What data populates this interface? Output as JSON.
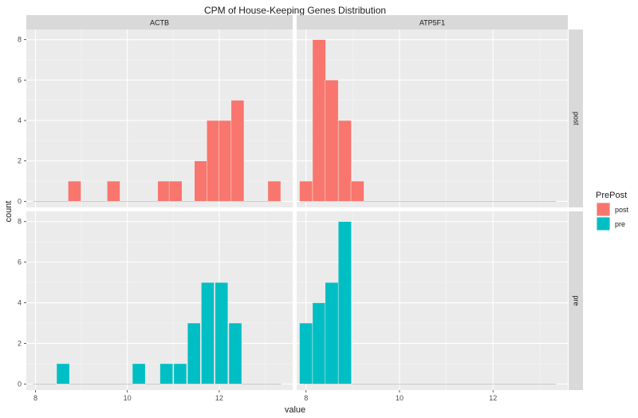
{
  "chart_data": {
    "type": "bar",
    "chart_subtype": "faceted-histogram",
    "title": "CPM of House-Keeping Genes Distribution",
    "xlabel": "value",
    "ylabel": "count",
    "xlim": [
      7.8,
      13.6
    ],
    "ylim": [
      -0.3,
      8.5
    ],
    "x_ticks": [
      8,
      10,
      12
    ],
    "x_tick_labels": [
      "8",
      "10",
      "12"
    ],
    "y_ticks": [
      0,
      2,
      4,
      6,
      8
    ],
    "y_tick_labels": [
      "0",
      "2",
      "4",
      "6",
      "8"
    ],
    "bin_width": 0.28,
    "grid": true,
    "facet_columns": [
      "ACTB",
      "ATP5F1"
    ],
    "facet_rows": [
      "post",
      "pre"
    ],
    "legend": {
      "title": "PrePost",
      "position": "right",
      "entries": [
        {
          "label": "post",
          "color": "#F8766D"
        },
        {
          "label": "pre",
          "color": "#00BFC4"
        }
      ]
    },
    "panels": [
      {
        "column": "ACTB",
        "row": "post",
        "color": "#F8766D",
        "range": [
          7.95,
          13.35
        ],
        "bins": [
          {
            "x": 8.85,
            "count": 1
          },
          {
            "x": 9.7,
            "count": 1
          },
          {
            "x": 10.8,
            "count": 1
          },
          {
            "x": 11.05,
            "count": 1
          },
          {
            "x": 11.6,
            "count": 2
          },
          {
            "x": 11.87,
            "count": 4
          },
          {
            "x": 12.13,
            "count": 4
          },
          {
            "x": 12.4,
            "count": 5
          },
          {
            "x": 13.2,
            "count": 1
          }
        ]
      },
      {
        "column": "ATP5F1",
        "row": "post",
        "color": "#F8766D",
        "range": [
          7.95,
          13.35
        ],
        "bins": [
          {
            "x": 8.0,
            "count": 1
          },
          {
            "x": 8.28,
            "count": 8
          },
          {
            "x": 8.55,
            "count": 6
          },
          {
            "x": 8.83,
            "count": 4
          },
          {
            "x": 9.1,
            "count": 1
          }
        ]
      },
      {
        "column": "ACTB",
        "row": "pre",
        "color": "#00BFC4",
        "range": [
          7.95,
          13.35
        ],
        "bins": [
          {
            "x": 8.6,
            "count": 1
          },
          {
            "x": 10.25,
            "count": 1
          },
          {
            "x": 10.85,
            "count": 1
          },
          {
            "x": 11.15,
            "count": 1
          },
          {
            "x": 11.45,
            "count": 3
          },
          {
            "x": 11.75,
            "count": 5
          },
          {
            "x": 12.05,
            "count": 5
          },
          {
            "x": 12.35,
            "count": 3
          }
        ]
      },
      {
        "column": "ATP5F1",
        "row": "pre",
        "color": "#00BFC4",
        "range": [
          7.95,
          13.35
        ],
        "bins": [
          {
            "x": 8.0,
            "count": 3
          },
          {
            "x": 8.28,
            "count": 4
          },
          {
            "x": 8.55,
            "count": 5
          },
          {
            "x": 8.83,
            "count": 8
          }
        ]
      }
    ]
  }
}
